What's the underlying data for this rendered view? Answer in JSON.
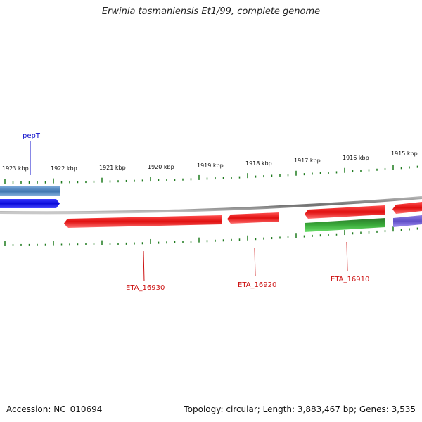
{
  "title": "Erwinia tasmaniensis Et1/99, complete genome",
  "footer": {
    "accession": "Accession: NC_010694",
    "summary": "Topology: circular; Length: 3,883,467 bp; Genes: 3,535"
  },
  "scale": {
    "labels": [
      "1923 kbp",
      "1922 kbp",
      "1921 kbp",
      "1920 kbp",
      "1919 kbp",
      "1918 kbp",
      "1917 kbp",
      "1916 kbp",
      "1915 kbp"
    ],
    "tick_color": "#1e7a1e"
  },
  "genes": [
    {
      "name": "pepT",
      "color": "#1111cc"
    },
    {
      "name": "ETA_16930",
      "color": "#cc1111"
    },
    {
      "name": "ETA_16920",
      "color": "#cc1111"
    },
    {
      "name": "ETA_16910",
      "color": "#cc1111"
    }
  ],
  "colors": {
    "backbone": "#8a8a8a",
    "cds_red": "#e01515",
    "cds_blue": "#1010dd",
    "cds_steelblue": "#4f86c0",
    "cds_green": "#2f9a2f",
    "cds_purple": "#6a5acd"
  }
}
